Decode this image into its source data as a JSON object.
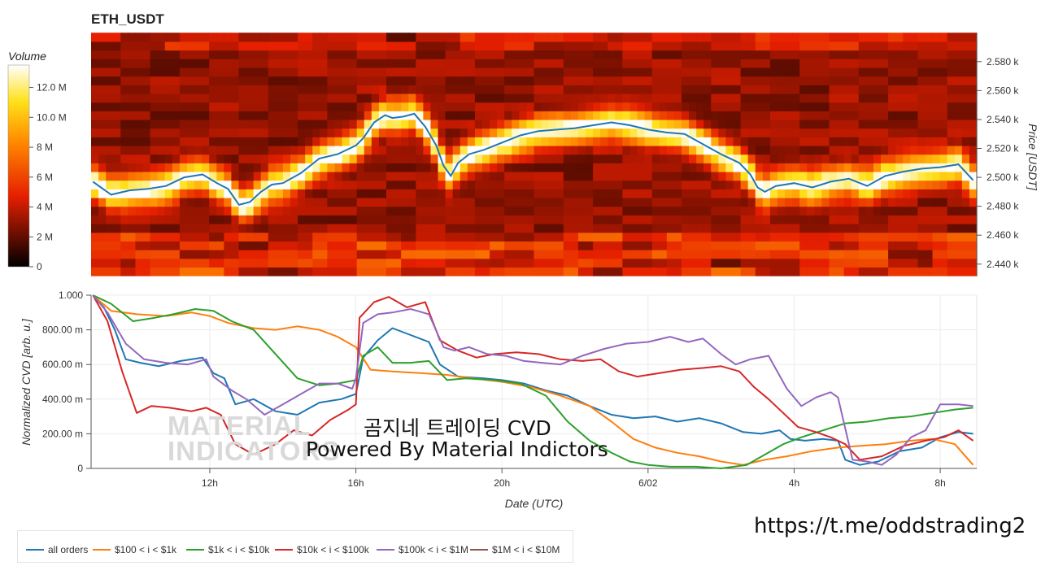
{
  "chart_data": [
    {
      "type": "heatmap",
      "title": "ETH_USDT",
      "colorbar": {
        "label": "Volume",
        "ticks": [
          "0",
          "2 M",
          "4 M",
          "6 M",
          "8 M",
          "10.0 M",
          "12.0 M"
        ],
        "range": [
          0,
          13.5
        ]
      },
      "ylabel": "Price [USDT]",
      "yticks": [
        "2.440 k",
        "2.460 k",
        "2.480 k",
        "2.500 k",
        "2.520 k",
        "2.540 k",
        "2.560 k",
        "2.580 k"
      ],
      "ylim": [
        2432,
        2599
      ],
      "price_line": {
        "x_hours": [
          8.8,
          9.3,
          9.8,
          10.3,
          10.8,
          11.3,
          11.8,
          12.2,
          12.5,
          12.8,
          13.1,
          13.4,
          13.7,
          14.0,
          14.5,
          15.0,
          15.5,
          16.0,
          16.2,
          16.5,
          16.8,
          17.0,
          17.3,
          17.6,
          17.9,
          18.2,
          18.4,
          18.6,
          18.8,
          19.1,
          19.5,
          20.0,
          20.5,
          21.0,
          21.5,
          22.0,
          22.5,
          23.0,
          23.5,
          24.0,
          24.5,
          25.0,
          25.5,
          26.0,
          26.5,
          26.8,
          27.0,
          27.2,
          27.5,
          28.0,
          28.5,
          29.0,
          29.5,
          30.0,
          30.5,
          31.0,
          31.5,
          32.0,
          32.5,
          32.9
        ],
        "price": [
          2497,
          2488,
          2491,
          2492,
          2494,
          2500,
          2502,
          2496,
          2492,
          2481,
          2483,
          2490,
          2495,
          2496,
          2503,
          2513,
          2516,
          2522,
          2527,
          2538,
          2543,
          2541,
          2542,
          2544,
          2535,
          2522,
          2508,
          2501,
          2510,
          2516,
          2519,
          2524,
          2529,
          2532,
          2533,
          2534,
          2536,
          2538,
          2536,
          2533,
          2531,
          2530,
          2523,
          2516,
          2510,
          2502,
          2493,
          2490,
          2494,
          2496,
          2493,
          2497,
          2499,
          2494,
          2501,
          2504,
          2506,
          2507,
          2509,
          2498
        ]
      }
    },
    {
      "type": "line",
      "ylabel": "Normalized CVD [arb. u.]",
      "xlabel": "Date (UTC)",
      "xticks": [
        "12h",
        "16h",
        "20h",
        "6/02",
        "4h",
        "8h"
      ],
      "xtick_hours": [
        12,
        16,
        20,
        24,
        28,
        32
      ],
      "xlim": [
        8.75,
        33.0
      ],
      "yticks": [
        "0",
        "200.00 m",
        "400.00 m",
        "600.00 m",
        "800.00 m",
        "1.000"
      ],
      "ylim": [
        0,
        1.0
      ],
      "series": [
        {
          "name": "all orders",
          "color": "#1f77b4",
          "x": [
            8.8,
            9.1,
            9.4,
            9.7,
            10.1,
            10.6,
            11.2,
            11.8,
            12.1,
            12.4,
            12.7,
            13.2,
            13.8,
            14.4,
            15.0,
            15.6,
            16.0,
            16.2,
            16.6,
            17.0,
            17.5,
            18.0,
            18.3,
            18.8,
            19.5,
            20.0,
            20.6,
            21.2,
            21.8,
            22.4,
            23.0,
            23.6,
            24.2,
            24.8,
            25.4,
            26.0,
            26.6,
            27.1,
            27.6,
            27.9,
            28.3,
            28.8,
            29.2,
            29.4,
            29.8,
            30.3,
            30.9,
            31.5,
            32.0,
            32.5,
            32.9
          ],
          "y": [
            1.0,
            0.93,
            0.8,
            0.63,
            0.61,
            0.59,
            0.62,
            0.64,
            0.55,
            0.52,
            0.37,
            0.4,
            0.33,
            0.31,
            0.38,
            0.4,
            0.43,
            0.64,
            0.74,
            0.81,
            0.77,
            0.73,
            0.6,
            0.53,
            0.52,
            0.51,
            0.49,
            0.45,
            0.42,
            0.36,
            0.31,
            0.29,
            0.3,
            0.27,
            0.29,
            0.26,
            0.21,
            0.2,
            0.22,
            0.17,
            0.16,
            0.17,
            0.16,
            0.05,
            0.02,
            0.04,
            0.1,
            0.12,
            0.18,
            0.21,
            0.2
          ]
        },
        {
          "name": "$100 < i < $1k",
          "color": "#ff7f0e",
          "x": [
            8.8,
            9.3,
            10.0,
            10.8,
            11.5,
            12.0,
            12.5,
            13.2,
            13.8,
            14.4,
            15.0,
            15.5,
            16.0,
            16.4,
            17.0,
            17.8,
            18.5,
            19.2,
            20.0,
            20.8,
            21.6,
            22.4,
            23.0,
            23.6,
            24.2,
            24.8,
            25.4,
            26.0,
            26.6,
            27.2,
            27.8,
            28.5,
            29.2,
            29.8,
            30.5,
            31.2,
            31.8,
            32.4,
            32.9
          ],
          "y": [
            1.0,
            0.91,
            0.89,
            0.88,
            0.9,
            0.88,
            0.84,
            0.81,
            0.8,
            0.82,
            0.8,
            0.76,
            0.7,
            0.57,
            0.56,
            0.55,
            0.54,
            0.52,
            0.5,
            0.47,
            0.42,
            0.36,
            0.27,
            0.17,
            0.12,
            0.09,
            0.07,
            0.04,
            0.02,
            0.05,
            0.07,
            0.1,
            0.12,
            0.13,
            0.14,
            0.16,
            0.17,
            0.14,
            0.02
          ]
        },
        {
          "name": "$1k < i < $10k",
          "color": "#2ca02c",
          "x": [
            8.8,
            9.3,
            9.9,
            10.5,
            11.0,
            11.6,
            12.1,
            12.6,
            13.2,
            13.8,
            14.4,
            15.0,
            15.5,
            16.0,
            16.2,
            16.6,
            17.0,
            17.5,
            18.0,
            18.5,
            19.0,
            19.8,
            20.5,
            21.2,
            21.8,
            22.4,
            23.0,
            23.5,
            24.0,
            24.6,
            25.3,
            26.0,
            26.7,
            27.2,
            27.7,
            28.2,
            28.8,
            29.4,
            30.0,
            30.6,
            31.2,
            31.8,
            32.4,
            32.9
          ],
          "y": [
            1.0,
            0.95,
            0.85,
            0.87,
            0.89,
            0.92,
            0.91,
            0.85,
            0.8,
            0.66,
            0.52,
            0.48,
            0.49,
            0.51,
            0.65,
            0.7,
            0.61,
            0.61,
            0.62,
            0.51,
            0.52,
            0.51,
            0.49,
            0.42,
            0.27,
            0.16,
            0.09,
            0.04,
            0.02,
            0.01,
            0.01,
            0.0,
            0.02,
            0.08,
            0.14,
            0.18,
            0.22,
            0.26,
            0.27,
            0.29,
            0.3,
            0.32,
            0.34,
            0.35
          ]
        },
        {
          "name": "$10k < i < $100k",
          "color": "#d62728",
          "x": [
            8.8,
            9.2,
            9.6,
            10.0,
            10.4,
            10.9,
            11.5,
            11.9,
            12.3,
            12.7,
            13.2,
            13.8,
            14.3,
            14.8,
            15.3,
            15.8,
            16.0,
            16.1,
            16.5,
            16.9,
            17.4,
            17.9,
            18.3,
            18.8,
            19.3,
            19.8,
            20.4,
            21.0,
            21.6,
            22.2,
            22.7,
            23.2,
            23.7,
            24.3,
            24.9,
            25.5,
            26.0,
            26.5,
            26.9,
            27.3,
            27.7,
            28.1,
            28.6,
            29.0,
            29.4,
            29.8,
            30.4,
            31.0,
            31.6,
            32.1,
            32.5,
            32.9
          ],
          "y": [
            1.0,
            0.85,
            0.56,
            0.32,
            0.36,
            0.35,
            0.33,
            0.35,
            0.31,
            0.14,
            0.08,
            0.14,
            0.22,
            0.19,
            0.28,
            0.34,
            0.37,
            0.87,
            0.96,
            0.99,
            0.93,
            0.96,
            0.74,
            0.68,
            0.64,
            0.66,
            0.67,
            0.66,
            0.63,
            0.62,
            0.63,
            0.56,
            0.53,
            0.55,
            0.57,
            0.58,
            0.59,
            0.56,
            0.47,
            0.4,
            0.32,
            0.24,
            0.21,
            0.18,
            0.14,
            0.05,
            0.07,
            0.13,
            0.16,
            0.18,
            0.22,
            0.16
          ]
        },
        {
          "name": "$100k < i < $1M",
          "color": "#9467bd",
          "x": [
            8.8,
            9.2,
            9.7,
            10.2,
            10.8,
            11.4,
            11.9,
            12.1,
            12.6,
            13.0,
            13.5,
            14.0,
            14.5,
            15.0,
            15.5,
            15.9,
            16.0,
            16.2,
            16.6,
            17.0,
            17.5,
            18.0,
            18.4,
            18.7,
            19.1,
            19.6,
            20.1,
            20.6,
            21.1,
            21.6,
            22.2,
            22.8,
            23.4,
            24.0,
            24.6,
            25.1,
            25.5,
            26.0,
            26.4,
            26.8,
            27.3,
            27.8,
            28.2,
            28.6,
            29.0,
            29.2,
            29.6,
            30.0,
            30.4,
            30.8,
            31.2,
            31.6,
            32.0,
            32.5,
            32.9
          ],
          "y": [
            1.0,
            0.9,
            0.72,
            0.63,
            0.61,
            0.6,
            0.63,
            0.53,
            0.45,
            0.4,
            0.31,
            0.37,
            0.43,
            0.49,
            0.49,
            0.46,
            0.52,
            0.84,
            0.89,
            0.9,
            0.92,
            0.89,
            0.7,
            0.68,
            0.7,
            0.66,
            0.65,
            0.62,
            0.61,
            0.6,
            0.65,
            0.69,
            0.72,
            0.73,
            0.76,
            0.73,
            0.75,
            0.66,
            0.6,
            0.63,
            0.65,
            0.46,
            0.36,
            0.41,
            0.44,
            0.41,
            0.05,
            0.04,
            0.02,
            0.08,
            0.18,
            0.22,
            0.37,
            0.37,
            0.36
          ]
        },
        {
          "name": "$1M < i < $10M",
          "color": "#8c564b",
          "x": [],
          "y": []
        }
      ]
    }
  ],
  "watermark": {
    "line1": "곰지네 트레이딩 CVD",
    "line2": "Powered By Material Indictors",
    "logo_line1": "MATERIAL",
    "logo_line2": "INDICATORS",
    "url": "https://t.me/oddstrading2"
  }
}
